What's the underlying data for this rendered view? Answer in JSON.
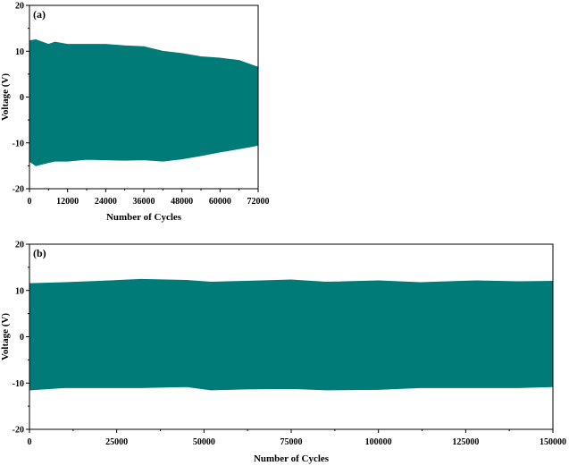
{
  "colors": {
    "series": "#007B78",
    "axis": "#000000"
  },
  "chart_data": [
    {
      "panel_label": "(a)",
      "type": "area",
      "xlabel": "Number of Cycles",
      "ylabel": "Voltage (V)",
      "xlim": [
        0,
        72000
      ],
      "ylim": [
        -20,
        20
      ],
      "xticks": [
        "0",
        "12000",
        "24000",
        "36000",
        "48000",
        "60000",
        "72000"
      ],
      "yticks": [
        "-20",
        "-10",
        "0",
        "10",
        "20"
      ],
      "series": [
        {
          "x": [
            0,
            2000,
            6000,
            8000,
            12000,
            18000,
            24000,
            30000,
            36000,
            42000,
            48000,
            54000,
            60000,
            66000,
            70000,
            72000
          ],
          "upper": [
            12.3,
            12.5,
            11.5,
            12.0,
            11.5,
            11.5,
            11.5,
            11.2,
            11.0,
            10.0,
            9.5,
            8.8,
            8.5,
            8.0,
            7.0,
            6.5
          ],
          "lower": [
            -14.0,
            -15.0,
            -14.3,
            -14.0,
            -14.0,
            -13.6,
            -13.7,
            -13.8,
            -13.7,
            -14.0,
            -13.5,
            -12.8,
            -12.0,
            -11.3,
            -10.8,
            -10.5
          ]
        }
      ]
    },
    {
      "panel_label": "(b)",
      "type": "area",
      "xlabel": "Number of Cycles",
      "ylabel": "Voltage (V)",
      "xlim": [
        0,
        150000
      ],
      "ylim": [
        -20,
        20
      ],
      "xticks": [
        "0",
        "25000",
        "50000",
        "75000",
        "100000",
        "125000",
        "150000"
      ],
      "yticks": [
        "-20",
        "-10",
        "0",
        "10",
        "20"
      ],
      "series": [
        {
          "x": [
            0,
            10000,
            20000,
            32000,
            45000,
            52000,
            62000,
            75000,
            85000,
            100000,
            112000,
            128000,
            140000,
            150000
          ],
          "upper": [
            11.5,
            11.7,
            12.0,
            12.4,
            12.2,
            11.8,
            12.0,
            12.3,
            11.8,
            12.1,
            11.7,
            12.1,
            11.9,
            12.0
          ],
          "lower": [
            -11.5,
            -11.0,
            -11.0,
            -11.0,
            -10.8,
            -11.5,
            -11.3,
            -11.2,
            -11.5,
            -11.4,
            -11.0,
            -11.0,
            -11.0,
            -10.8
          ]
        }
      ]
    }
  ]
}
